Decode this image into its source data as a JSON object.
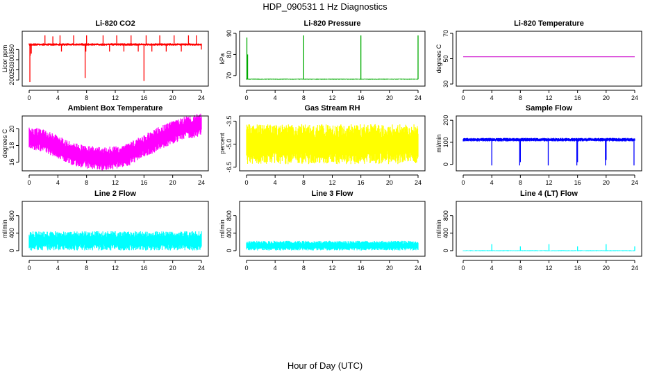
{
  "figure": {
    "title": "HDP_090531  1 Hz Diagnostics",
    "xlabel": "Hour of Day (UTC)"
  },
  "chart_data": [
    {
      "type": "line",
      "title": "Li-820 CO2",
      "ylabel": "Licor ppm",
      "color": "#ff0000",
      "xlim": [
        0,
        24
      ],
      "ylim": [
        180,
        430
      ],
      "xticks": [
        "0",
        "4",
        "8",
        "12",
        "16",
        "20",
        "24"
      ],
      "yticks": [
        "200",
        "250",
        "300",
        "350"
      ],
      "baseline": 375,
      "noise": 6,
      "spikes": [
        [
          0.1,
          190
        ],
        [
          0.15,
          320
        ],
        [
          0.3,
          330
        ],
        [
          2.2,
          420
        ],
        [
          3.3,
          415
        ],
        [
          4.3,
          420
        ],
        [
          4.5,
          340
        ],
        [
          6.2,
          420
        ],
        [
          7.8,
          210
        ],
        [
          7.9,
          340
        ],
        [
          8.0,
          420
        ],
        [
          10.3,
          420
        ],
        [
          11.2,
          340
        ],
        [
          12.2,
          420
        ],
        [
          13.2,
          340
        ],
        [
          14.2,
          420
        ],
        [
          15.2,
          340
        ],
        [
          16.0,
          195
        ],
        [
          16.3,
          420
        ],
        [
          17.1,
          340
        ],
        [
          18.2,
          420
        ],
        [
          19.1,
          340
        ],
        [
          20.2,
          420
        ],
        [
          21.2,
          340
        ],
        [
          22.2,
          420
        ],
        [
          23.3,
          420
        ],
        [
          24.0,
          350
        ]
      ]
    },
    {
      "type": "line",
      "title": "Li-820 Pressure",
      "ylabel": "kPa",
      "color": "#00aa00",
      "xlim": [
        0,
        24
      ],
      "ylim": [
        66,
        90
      ],
      "xticks": [
        "0",
        "4",
        "8",
        "12",
        "16",
        "20",
        "24"
      ],
      "yticks": [
        "70",
        "80",
        "90"
      ],
      "baseline": 68.3,
      "noise": 0.2,
      "spikes": [
        [
          0.05,
          88
        ],
        [
          0.15,
          80
        ],
        [
          8.0,
          89
        ],
        [
          16.0,
          89
        ],
        [
          24.0,
          89
        ]
      ]
    },
    {
      "type": "line",
      "title": "Li-820 Temperature",
      "ylabel": "degrees C",
      "color": "#cc00cc",
      "xlim": [
        0,
        24
      ],
      "ylim": [
        30,
        70
      ],
      "xticks": [
        "0",
        "4",
        "8",
        "12",
        "16",
        "20",
        "24"
      ],
      "yticks": [
        "30",
        "50",
        "70"
      ],
      "baseline": 51.5,
      "noise": 0,
      "spikes": []
    },
    {
      "type": "line",
      "title": "Ambient Box Temperature",
      "ylabel": "degrees C",
      "color": "#ff00ff",
      "xlim": [
        0,
        24
      ],
      "ylim": [
        15.2,
        21.3
      ],
      "xticks": [
        "0",
        "4",
        "8",
        "12",
        "16",
        "20",
        "24"
      ],
      "yticks": [
        "16",
        "18",
        "20"
      ],
      "profile": [
        [
          0,
          18.8
        ],
        [
          2,
          18.6
        ],
        [
          4,
          17.8
        ],
        [
          6,
          17.0
        ],
        [
          8,
          16.6
        ],
        [
          10,
          16.4
        ],
        [
          12,
          16.5
        ],
        [
          14,
          17.0
        ],
        [
          16,
          17.9
        ],
        [
          18,
          18.8
        ],
        [
          20,
          19.6
        ],
        [
          22,
          20.2
        ],
        [
          24,
          20.5
        ]
      ],
      "noise": 1.4,
      "spikes": []
    },
    {
      "type": "line",
      "title": "Gas Stream RH",
      "ylabel": "percent",
      "color": "#ffff00",
      "xlim": [
        0,
        24
      ],
      "ylim": [
        -6.6,
        -3.3
      ],
      "xticks": [
        "0",
        "4",
        "8",
        "12",
        "16",
        "20",
        "24"
      ],
      "yticks": [
        "-6.5",
        "-5.0",
        "-3.5"
      ],
      "baseline": -5.0,
      "noise": 1.3,
      "spikes": []
    },
    {
      "type": "line",
      "title": "Sample Flow",
      "ylabel": "ml/min",
      "color": "#0000ff",
      "xlim": [
        0,
        24
      ],
      "ylim": [
        -20,
        210
      ],
      "xticks": [
        "0",
        "4",
        "8",
        "12",
        "16",
        "20",
        "24"
      ],
      "yticks": [
        "0",
        "100",
        "200"
      ],
      "baseline": 112,
      "noise": 8,
      "spikes": [
        [
          4.0,
          -5
        ],
        [
          7.9,
          -5
        ],
        [
          8.0,
          10
        ],
        [
          11.9,
          -5
        ],
        [
          15.9,
          -5
        ],
        [
          16.0,
          10
        ],
        [
          19.9,
          -5
        ],
        [
          20.0,
          20
        ],
        [
          23.9,
          -5
        ]
      ]
    },
    {
      "type": "line",
      "title": "Line 2 Flow",
      "ylabel": "ml/min",
      "color": "#00ffff",
      "xlim": [
        0,
        24
      ],
      "ylim": [
        -80,
        1080
      ],
      "xticks": [
        "0",
        "4",
        "8",
        "12",
        "16",
        "20",
        "24"
      ],
      "yticks": [
        "0",
        "400",
        "800"
      ],
      "baseline": 225,
      "noise": 220,
      "spikes": []
    },
    {
      "type": "line",
      "title": "Line 3 Flow",
      "ylabel": "ml/min",
      "color": "#00ffff",
      "xlim": [
        0,
        24
      ],
      "ylim": [
        -80,
        1080
      ],
      "xticks": [
        "0",
        "4",
        "8",
        "12",
        "16",
        "20",
        "24"
      ],
      "yticks": [
        "0",
        "400",
        "800"
      ],
      "baseline": 115,
      "noise": 110,
      "spikes": []
    },
    {
      "type": "line",
      "title": "Line 4 (LT) Flow",
      "ylabel": "ml/min",
      "color": "#00ffff",
      "xlim": [
        0,
        24
      ],
      "ylim": [
        -80,
        1080
      ],
      "xticks": [
        "0",
        "4",
        "8",
        "12",
        "16",
        "20",
        "24"
      ],
      "yticks": [
        "0",
        "400",
        "800"
      ],
      "baseline": 0,
      "noise": 10,
      "spikes": [
        [
          4.0,
          150
        ],
        [
          8.0,
          100
        ],
        [
          12.0,
          150
        ],
        [
          16.0,
          100
        ],
        [
          20.0,
          150
        ],
        [
          24.0,
          100
        ]
      ]
    }
  ]
}
